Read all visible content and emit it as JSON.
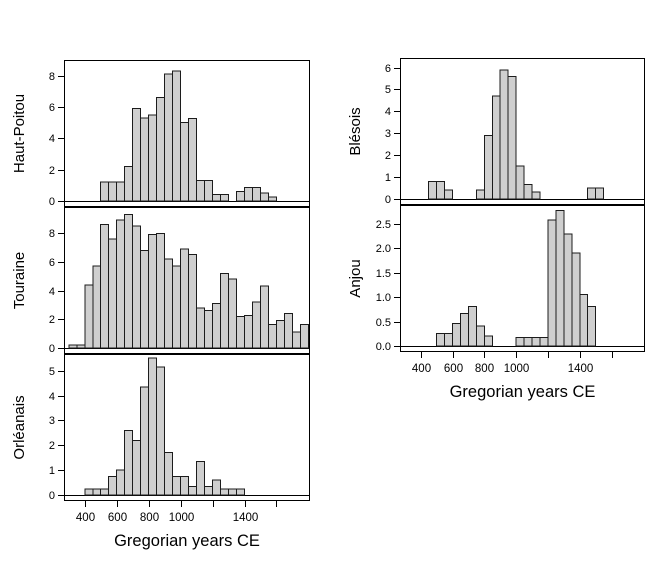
{
  "chart_meta": {
    "xlabel": "Gregorian years CE",
    "x_domain": [
      270,
      1810
    ],
    "bin_width_years": 50,
    "grid": false,
    "legend": "none",
    "xticks": [
      {
        "year": 400,
        "label": "400"
      },
      {
        "year": 600,
        "label": "600"
      },
      {
        "year": 800,
        "label": "800"
      },
      {
        "year": 1000,
        "label": "1000"
      },
      {
        "year": 1200,
        "label": ""
      },
      {
        "year": 1400,
        "label": "1400"
      },
      {
        "year": 1600,
        "label": ""
      }
    ],
    "colors": {
      "bar_fill": "#cfcfcf",
      "bar_stroke": "#1c1c1c",
      "panel_border": "#000000",
      "text": "#000000",
      "background": "#ffffff"
    }
  },
  "chart_data": [
    {
      "type": "bar",
      "subtype": "histogram",
      "region": "Haut-Poitou",
      "column": "left",
      "ylim": [
        0,
        8.8
      ],
      "yticks": [
        {
          "v": 0,
          "label": "0"
        },
        {
          "v": 2,
          "label": "2"
        },
        {
          "v": 4,
          "label": "4"
        },
        {
          "v": 6,
          "label": "6"
        },
        {
          "v": 8,
          "label": "8"
        }
      ],
      "bins": [
        [
          500,
          1.2
        ],
        [
          550,
          1.2
        ],
        [
          600,
          1.2
        ],
        [
          650,
          2.2
        ],
        [
          700,
          5.9
        ],
        [
          750,
          5.3
        ],
        [
          800,
          5.5
        ],
        [
          850,
          6.6
        ],
        [
          900,
          8.1
        ],
        [
          950,
          8.3
        ],
        [
          1000,
          5.0
        ],
        [
          1050,
          5.25
        ],
        [
          1100,
          1.3
        ],
        [
          1150,
          1.3
        ],
        [
          1200,
          0.4
        ],
        [
          1250,
          0.4
        ],
        [
          1350,
          0.6
        ],
        [
          1400,
          0.85
        ],
        [
          1450,
          0.85
        ],
        [
          1500,
          0.5
        ],
        [
          1550,
          0.25
        ]
      ]
    },
    {
      "type": "bar",
      "subtype": "histogram",
      "region": "Touraine",
      "column": "left",
      "ylim": [
        0,
        9.6
      ],
      "yticks": [
        {
          "v": 0,
          "label": "0"
        },
        {
          "v": 2,
          "label": "2"
        },
        {
          "v": 4,
          "label": "4"
        },
        {
          "v": 6,
          "label": "6"
        },
        {
          "v": 8,
          "label": "8"
        }
      ],
      "bins": [
        [
          300,
          0.2
        ],
        [
          350,
          0.2
        ],
        [
          400,
          4.4
        ],
        [
          450,
          5.7
        ],
        [
          500,
          8.6
        ],
        [
          550,
          7.6
        ],
        [
          600,
          8.9
        ],
        [
          650,
          9.3
        ],
        [
          700,
          8.5
        ],
        [
          750,
          6.8
        ],
        [
          800,
          7.9
        ],
        [
          850,
          7.95
        ],
        [
          900,
          6.2
        ],
        [
          950,
          5.7
        ],
        [
          1000,
          6.9
        ],
        [
          1050,
          6.5
        ],
        [
          1100,
          2.8
        ],
        [
          1150,
          2.6
        ],
        [
          1200,
          3.1
        ],
        [
          1250,
          5.2
        ],
        [
          1300,
          4.8
        ],
        [
          1350,
          2.2
        ],
        [
          1400,
          2.25
        ],
        [
          1450,
          3.2
        ],
        [
          1500,
          4.3
        ],
        [
          1550,
          1.65
        ],
        [
          1600,
          1.9
        ],
        [
          1650,
          2.4
        ],
        [
          1700,
          1.1
        ],
        [
          1750,
          1.65
        ]
      ]
    },
    {
      "type": "bar",
      "subtype": "histogram",
      "region": "Orléanais",
      "column": "left",
      "ylim": [
        0,
        5.55
      ],
      "yticks": [
        {
          "v": 0,
          "label": "0"
        },
        {
          "v": 1,
          "label": "1"
        },
        {
          "v": 2,
          "label": "2"
        },
        {
          "v": 3,
          "label": "3"
        },
        {
          "v": 4,
          "label": "4"
        },
        {
          "v": 5,
          "label": "5"
        }
      ],
      "bins": [
        [
          400,
          0.25
        ],
        [
          450,
          0.25
        ],
        [
          500,
          0.25
        ],
        [
          550,
          0.75
        ],
        [
          600,
          1.0
        ],
        [
          650,
          2.6
        ],
        [
          700,
          2.2
        ],
        [
          750,
          4.35
        ],
        [
          800,
          5.5
        ],
        [
          850,
          5.15
        ],
        [
          900,
          1.7
        ],
        [
          950,
          0.75
        ],
        [
          1000,
          0.75
        ],
        [
          1050,
          0.35
        ],
        [
          1100,
          1.35
        ],
        [
          1150,
          0.35
        ],
        [
          1200,
          0.6
        ],
        [
          1250,
          0.25
        ],
        [
          1300,
          0.25
        ],
        [
          1350,
          0.25
        ]
      ]
    },
    {
      "type": "bar",
      "subtype": "histogram",
      "region": "Blésois",
      "column": "right",
      "ylim": [
        0,
        6.3
      ],
      "yticks": [
        {
          "v": 0,
          "label": "0"
        },
        {
          "v": 1,
          "label": "1"
        },
        {
          "v": 2,
          "label": "2"
        },
        {
          "v": 3,
          "label": "3"
        },
        {
          "v": 4,
          "label": "4"
        },
        {
          "v": 5,
          "label": "5"
        },
        {
          "v": 6,
          "label": "6"
        }
      ],
      "bins": [
        [
          450,
          0.8
        ],
        [
          500,
          0.8
        ],
        [
          550,
          0.4
        ],
        [
          750,
          0.4
        ],
        [
          800,
          2.9
        ],
        [
          850,
          4.7
        ],
        [
          900,
          5.9
        ],
        [
          950,
          5.6
        ],
        [
          1000,
          1.5
        ],
        [
          1050,
          0.67
        ],
        [
          1100,
          0.33
        ],
        [
          1450,
          0.5
        ],
        [
          1500,
          0.5
        ]
      ]
    },
    {
      "type": "bar",
      "subtype": "histogram",
      "region": "Anjou",
      "column": "right",
      "ylim": [
        0,
        2.82
      ],
      "yticks": [
        {
          "v": 0,
          "label": "0.0"
        },
        {
          "v": 0.5,
          "label": "0.5"
        },
        {
          "v": 1,
          "label": "1.0"
        },
        {
          "v": 1.5,
          "label": "1.5"
        },
        {
          "v": 2,
          "label": "2.0"
        },
        {
          "v": 2.5,
          "label": "2.5"
        }
      ],
      "bins": [
        [
          500,
          0.26
        ],
        [
          550,
          0.26
        ],
        [
          600,
          0.46
        ],
        [
          650,
          0.66
        ],
        [
          700,
          0.81
        ],
        [
          750,
          0.41
        ],
        [
          800,
          0.2
        ],
        [
          1000,
          0.17
        ],
        [
          1050,
          0.17
        ],
        [
          1100,
          0.17
        ],
        [
          1150,
          0.17
        ],
        [
          1200,
          2.57
        ],
        [
          1250,
          2.77
        ],
        [
          1300,
          2.29
        ],
        [
          1350,
          1.9
        ],
        [
          1400,
          1.05
        ],
        [
          1450,
          0.81
        ]
      ]
    }
  ]
}
